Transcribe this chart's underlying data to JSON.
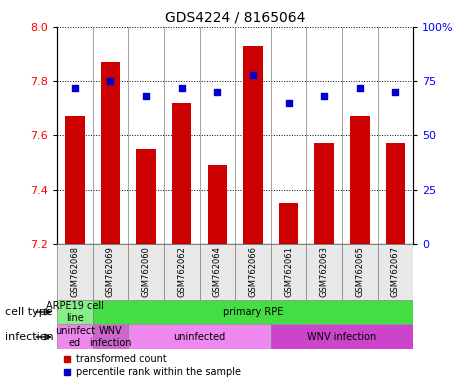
{
  "title": "GDS4224 / 8165064",
  "samples": [
    "GSM762068",
    "GSM762069",
    "GSM762060",
    "GSM762062",
    "GSM762064",
    "GSM762066",
    "GSM762061",
    "GSM762063",
    "GSM762065",
    "GSM762067"
  ],
  "transformed_counts": [
    7.67,
    7.87,
    7.55,
    7.72,
    7.49,
    7.93,
    7.35,
    7.57,
    7.67,
    7.57
  ],
  "percentile_ranks": [
    72,
    75,
    68,
    72,
    70,
    78,
    65,
    68,
    72,
    70
  ],
  "ylim": [
    7.2,
    8.0
  ],
  "yticks": [
    7.2,
    7.4,
    7.6,
    7.8,
    8.0
  ],
  "y2lim": [
    0,
    100
  ],
  "y2ticks": [
    0,
    25,
    50,
    75,
    100
  ],
  "y2ticklabels": [
    "0",
    "25",
    "50",
    "75",
    "100%"
  ],
  "bar_color": "#cc0000",
  "dot_color": "#0000cc",
  "cell_type_groups": [
    {
      "text": "ARPE19 cell\nline",
      "start": 0,
      "end": 1,
      "color": "#88ee88"
    },
    {
      "text": "primary RPE",
      "start": 1,
      "end": 10,
      "color": "#44dd44"
    }
  ],
  "infection_groups": [
    {
      "text": "uninfect\ned",
      "start": 0,
      "end": 1,
      "color": "#ee88ee"
    },
    {
      "text": "WNV\ninfection",
      "start": 1,
      "end": 2,
      "color": "#cc66cc"
    },
    {
      "text": "uninfected",
      "start": 2,
      "end": 6,
      "color": "#ee88ee"
    },
    {
      "text": "WNV infection",
      "start": 6,
      "end": 10,
      "color": "#cc44cc"
    }
  ],
  "bar_bottom": 7.2,
  "bar_width": 0.55,
  "bg_color": "#e8e8e8"
}
